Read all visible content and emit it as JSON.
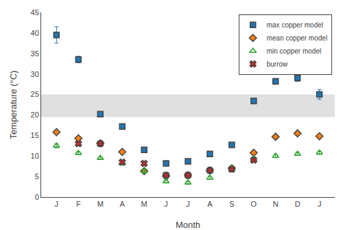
{
  "chart_data": {
    "type": "scatter",
    "x": [
      0,
      1,
      2,
      3,
      4,
      5,
      6,
      7,
      8,
      9,
      10,
      11,
      12
    ],
    "xlabel": "Month",
    "ylabel": "Temperature (°C)",
    "xlim": [
      -0.7,
      12.7
    ],
    "xticks": [
      {
        "value": 0,
        "label": "J"
      },
      {
        "value": 1,
        "label": "F"
      },
      {
        "value": 2,
        "label": "M"
      },
      {
        "value": 3,
        "label": "A"
      },
      {
        "value": 4,
        "label": "M"
      },
      {
        "value": 5,
        "label": "J"
      },
      {
        "value": 6,
        "label": "J"
      },
      {
        "value": 7,
        "label": "A"
      },
      {
        "value": 8,
        "label": "S"
      },
      {
        "value": 9,
        "label": "O"
      },
      {
        "value": 10,
        "label": "N"
      },
      {
        "value": 11,
        "label": "D"
      },
      {
        "value": 12,
        "label": "J"
      }
    ],
    "ylim": [
      0,
      45
    ],
    "yticks": [
      0,
      5,
      10,
      15,
      20,
      25,
      30,
      35,
      40,
      45
    ],
    "grid": false,
    "legend": "upper right",
    "shaded_band": [
      19.5,
      25.0
    ],
    "shaded_color": "#e0e0e0",
    "series": [
      {
        "name": "max copper model",
        "marker": "square",
        "values": [
          39.5,
          33.5,
          20.2,
          17.2,
          11.5,
          8.2,
          8.7,
          10.5,
          12.7,
          23.4,
          28.2,
          29.0,
          25.0
        ],
        "error": [
          2.0,
          0.8,
          0.4,
          0.5,
          0.5,
          0.4,
          0.4,
          0.4,
          0.5,
          0.5,
          0.7,
          0.8,
          1.2
        ]
      },
      {
        "name": "mean copper model",
        "marker": "diamond",
        "values": [
          15.8,
          14.3,
          13.1,
          11.0,
          6.3,
          5.2,
          5.3,
          6.5,
          7.0,
          10.8,
          14.7,
          15.5,
          14.8
        ]
      },
      {
        "name": "min copper model",
        "marker": "triangle-up-open",
        "values": [
          12.5,
          10.7,
          9.5,
          8.2,
          6.3,
          3.8,
          3.5,
          4.7,
          7.0,
          9.2,
          10.0,
          10.5,
          10.8
        ],
        "error": [
          0.5,
          0.3,
          0.3,
          0.3,
          0.5,
          0.4,
          0.4,
          0.4,
          0.4,
          0.4,
          0.4,
          0.4,
          0.4
        ]
      },
      {
        "name": "burrow",
        "marker": "x",
        "x": [
          1,
          2,
          3,
          4,
          5,
          6,
          7,
          8,
          9
        ],
        "values": [
          13.0,
          13.0,
          8.5,
          8.2,
          5.3,
          5.3,
          6.5,
          6.8,
          9.0
        ]
      }
    ]
  }
}
